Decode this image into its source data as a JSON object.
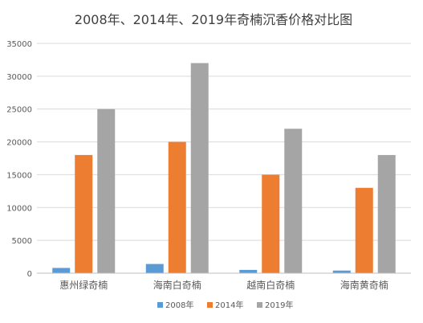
{
  "chart_data": {
    "type": "bar",
    "title": "2008年、2014年、2019年奇楠沉香价格对比图",
    "xlabel": "",
    "ylabel": "",
    "categories": [
      "惠州绿奇楠",
      "海南白奇楠",
      "越南白奇楠",
      "海南黄奇楠"
    ],
    "ylim": [
      0,
      35000
    ],
    "yticks": [
      0,
      5000,
      10000,
      15000,
      20000,
      25000,
      30000,
      35000
    ],
    "grid": true,
    "legend_position": "bottom",
    "series": [
      {
        "name": "2008年",
        "color": "#5B9BD5",
        "values": [
          800,
          1400,
          500,
          400
        ]
      },
      {
        "name": "2014年",
        "color": "#ED7D31",
        "values": [
          18000,
          20000,
          15000,
          13000
        ]
      },
      {
        "name": "2019年",
        "color": "#A5A5A5",
        "values": [
          25000,
          32000,
          22000,
          18000
        ]
      }
    ],
    "colors": {
      "grid": "#D9D9D9",
      "axis_text": "#595959",
      "title": "#404040"
    }
  }
}
